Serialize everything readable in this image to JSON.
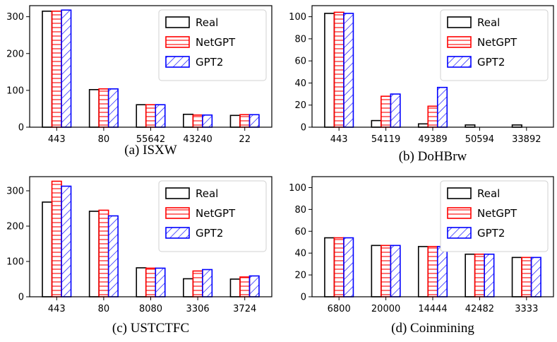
{
  "colors": {
    "real": "#000000",
    "netgpt": "#ff0000",
    "gpt2": "#0000ff"
  },
  "chart_data": [
    {
      "type": "bar",
      "caption": "(a) ISXW",
      "categories": [
        "443",
        "80",
        "55642",
        "43240",
        "22"
      ],
      "ylim": [
        0,
        330
      ],
      "yticks": [
        0,
        100,
        200,
        300
      ],
      "legend": "top-right",
      "series": [
        {
          "name": "Real",
          "values": [
            315,
            102,
            61,
            35,
            32
          ]
        },
        {
          "name": "NetGPT",
          "values": [
            315,
            104,
            61,
            33,
            34
          ]
        },
        {
          "name": "GPT2",
          "values": [
            318,
            104,
            61,
            33,
            34
          ]
        }
      ]
    },
    {
      "type": "bar",
      "caption": "(b) DoHBrw",
      "categories": [
        "443",
        "54119",
        "49389",
        "50594",
        "33892"
      ],
      "ylim": [
        0,
        110
      ],
      "yticks": [
        0,
        20,
        40,
        60,
        80,
        100
      ],
      "legend": "top-right",
      "series": [
        {
          "name": "Real",
          "values": [
            103,
            6,
            3,
            2,
            2
          ]
        },
        {
          "name": "NetGPT",
          "values": [
            104,
            28,
            19,
            0,
            0
          ]
        },
        {
          "name": "GPT2",
          "values": [
            103,
            30,
            36,
            0,
            0
          ]
        }
      ]
    },
    {
      "type": "bar",
      "caption": "(c) USTCTFC",
      "categories": [
        "443",
        "80",
        "8080",
        "3306",
        "3724"
      ],
      "ylim": [
        0,
        340
      ],
      "yticks": [
        0,
        100,
        200,
        300
      ],
      "legend": "top-right",
      "series": [
        {
          "name": "Real",
          "values": [
            268,
            242,
            82,
            51,
            50
          ]
        },
        {
          "name": "NetGPT",
          "values": [
            327,
            245,
            81,
            73,
            56
          ]
        },
        {
          "name": "GPT2",
          "values": [
            313,
            229,
            81,
            77,
            59
          ]
        }
      ]
    },
    {
      "type": "bar",
      "caption": "(d) Coinmining",
      "categories": [
        "6800",
        "20000",
        "14444",
        "42482",
        "3333"
      ],
      "ylim": [
        0,
        110
      ],
      "yticks": [
        0,
        20,
        40,
        60,
        80,
        100
      ],
      "legend": "top-right",
      "series": [
        {
          "name": "Real",
          "values": [
            54,
            47,
            46,
            39,
            36
          ]
        },
        {
          "name": "NetGPT",
          "values": [
            54,
            47,
            46,
            39,
            36
          ]
        },
        {
          "name": "GPT2",
          "values": [
            54,
            47,
            46,
            39,
            36
          ]
        }
      ]
    }
  ]
}
